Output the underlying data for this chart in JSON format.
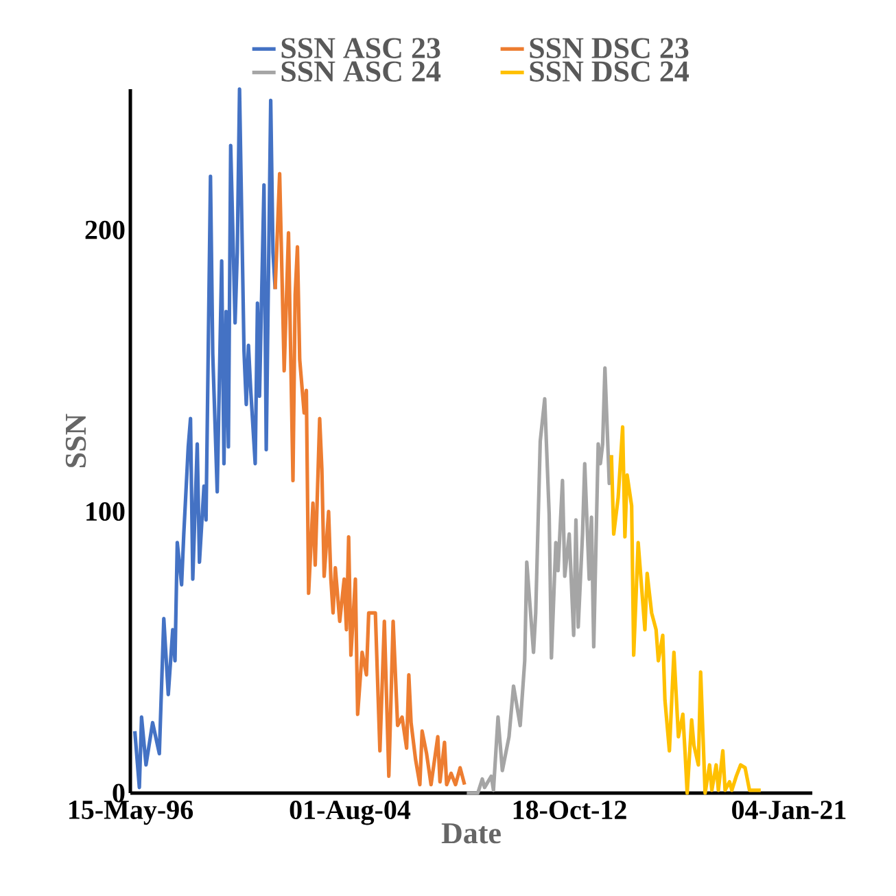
{
  "chart_data": {
    "type": "line",
    "xlabel": "Date",
    "ylabel": "SSN",
    "legend": "top",
    "xlim": [
      "1996-05-15",
      "2021-11-19"
    ],
    "ylim": [
      0,
      250
    ],
    "yticks": [
      0,
      100,
      200
    ],
    "xticks": [
      {
        "value": "1996-05-15",
        "label": "15-May-96"
      },
      {
        "value": "2004-08-01",
        "label": "01-Aug-04"
      },
      {
        "value": "2012-10-18",
        "label": "18-Oct-12"
      },
      {
        "value": "2021-01-04",
        "label": "04-Jan-21"
      }
    ],
    "series": [
      {
        "name": "SSN ASC 23",
        "color": "#4472c4",
        "x": [
          "1996-07",
          "1996-09",
          "1996-10",
          "1996-12",
          "1997-03",
          "1997-06",
          "1997-08",
          "1997-10",
          "1997-12",
          "1998-01",
          "1998-02",
          "1998-04",
          "1998-05",
          "1998-07",
          "1998-08",
          "1998-09",
          "1998-11",
          "1998-12",
          "1999-02",
          "1999-03",
          "1999-05",
          "1999-06",
          "1999-08",
          "1999-10",
          "1999-11",
          "1999-12",
          "2000-01",
          "2000-02",
          "2000-04",
          "2000-05",
          "2000-06",
          "2000-08",
          "2000-09",
          "2000-10",
          "2000-11",
          "2001-01",
          "2001-02",
          "2001-03",
          "2001-05",
          "2001-06",
          "2001-08",
          "2001-09",
          "2001-10"
        ],
        "values": [
          22,
          2,
          27,
          10,
          25,
          14,
          62,
          35,
          58,
          47,
          89,
          74,
          92,
          123,
          133,
          76,
          124,
          82,
          109,
          97,
          219,
          156,
          107,
          189,
          117,
          171,
          123,
          230,
          167,
          192,
          250,
          157,
          138,
          159,
          143,
          117,
          174,
          141,
          216,
          122,
          246,
          192,
          179
        ]
      },
      {
        "name": "SSN DSC 23",
        "color": "#ed7d31",
        "x": [
          "2001-10",
          "2001-12",
          "2002-02",
          "2002-04",
          "2002-06",
          "2002-07",
          "2002-08",
          "2002-09",
          "2002-11",
          "2002-12",
          "2003-01",
          "2003-03",
          "2003-04",
          "2003-06",
          "2003-07",
          "2003-08",
          "2003-10",
          "2003-11",
          "2003-12",
          "2004-01",
          "2004-03",
          "2004-05",
          "2004-06",
          "2004-07",
          "2004-08",
          "2004-10",
          "2004-11",
          "2005-01",
          "2005-03",
          "2005-04",
          "2005-07",
          "2005-09",
          "2005-11",
          "2006-01",
          "2006-03",
          "2006-05",
          "2006-07",
          "2006-09",
          "2006-10",
          "2006-11",
          "2007-01",
          "2007-03",
          "2007-04",
          "2007-06",
          "2007-08",
          "2007-11",
          "2007-12",
          "2008-02",
          "2008-03",
          "2008-05",
          "2008-07",
          "2008-09",
          "2008-11"
        ],
        "values": [
          179,
          220,
          150,
          199,
          111,
          177,
          194,
          154,
          135,
          143,
          71,
          103,
          81,
          133,
          115,
          77,
          100,
          76,
          64,
          80,
          61,
          76,
          58,
          91,
          49,
          76,
          28,
          50,
          42,
          64,
          64,
          15,
          61,
          6,
          61,
          24,
          27,
          16,
          42,
          25,
          12,
          3,
          22,
          14,
          3,
          20,
          4,
          18,
          3,
          7,
          3,
          9,
          3
        ]
      },
      {
        "name": "SSN ASC 24",
        "color": "#a5a5a5",
        "x": [
          "2008-12",
          "2009-05",
          "2009-07",
          "2009-08",
          "2009-11",
          "2009-12",
          "2010-02",
          "2010-04",
          "2010-07",
          "2010-09",
          "2010-12",
          "2011-02",
          "2011-03",
          "2011-06",
          "2011-07",
          "2011-09",
          "2011-11",
          "2012-01",
          "2012-02",
          "2012-04",
          "2012-05",
          "2012-07",
          "2012-08",
          "2012-10",
          "2012-12",
          "2013-01",
          "2013-02",
          "2013-04",
          "2013-05",
          "2013-07",
          "2013-08",
          "2013-09",
          "2013-11",
          "2013-12",
          "2014-01",
          "2014-02",
          "2014-04",
          "2014-05"
        ],
        "values": [
          0,
          0,
          5,
          2,
          6,
          1,
          27,
          8,
          20,
          38,
          24,
          47,
          82,
          50,
          64,
          125,
          140,
          99,
          48,
          89,
          79,
          111,
          77,
          92,
          56,
          97,
          59,
          92,
          117,
          76,
          98,
          52,
          124,
          117,
          124,
          151,
          110,
          120
        ]
      },
      {
        "name": "SSN DSC 24",
        "color": "#ffc000",
        "x": [
          "2014-05",
          "2014-06",
          "2014-08",
          "2014-10",
          "2014-11",
          "2014-12",
          "2015-02",
          "2015-03",
          "2015-05",
          "2015-08",
          "2015-09",
          "2015-11",
          "2016-01",
          "2016-02",
          "2016-04",
          "2016-05",
          "2016-07",
          "2016-09",
          "2016-11",
          "2017-01",
          "2017-02",
          "2017-03",
          "2017-05",
          "2017-06",
          "2017-08",
          "2017-09",
          "2017-11",
          "2018-01",
          "2018-02",
          "2018-04",
          "2018-05",
          "2018-07",
          "2018-08",
          "2018-10",
          "2018-11",
          "2019-01",
          "2019-03",
          "2019-05",
          "2019-07",
          "2019-09",
          "2019-12"
        ],
        "values": [
          120,
          92,
          105,
          130,
          91,
          113,
          102,
          49,
          89,
          58,
          78,
          64,
          58,
          47,
          56,
          33,
          15,
          50,
          20,
          28,
          14,
          0,
          26,
          17,
          10,
          43,
          0,
          10,
          1,
          10,
          1,
          15,
          1,
          4,
          1,
          6,
          10,
          9,
          1,
          1,
          1
        ]
      }
    ]
  }
}
